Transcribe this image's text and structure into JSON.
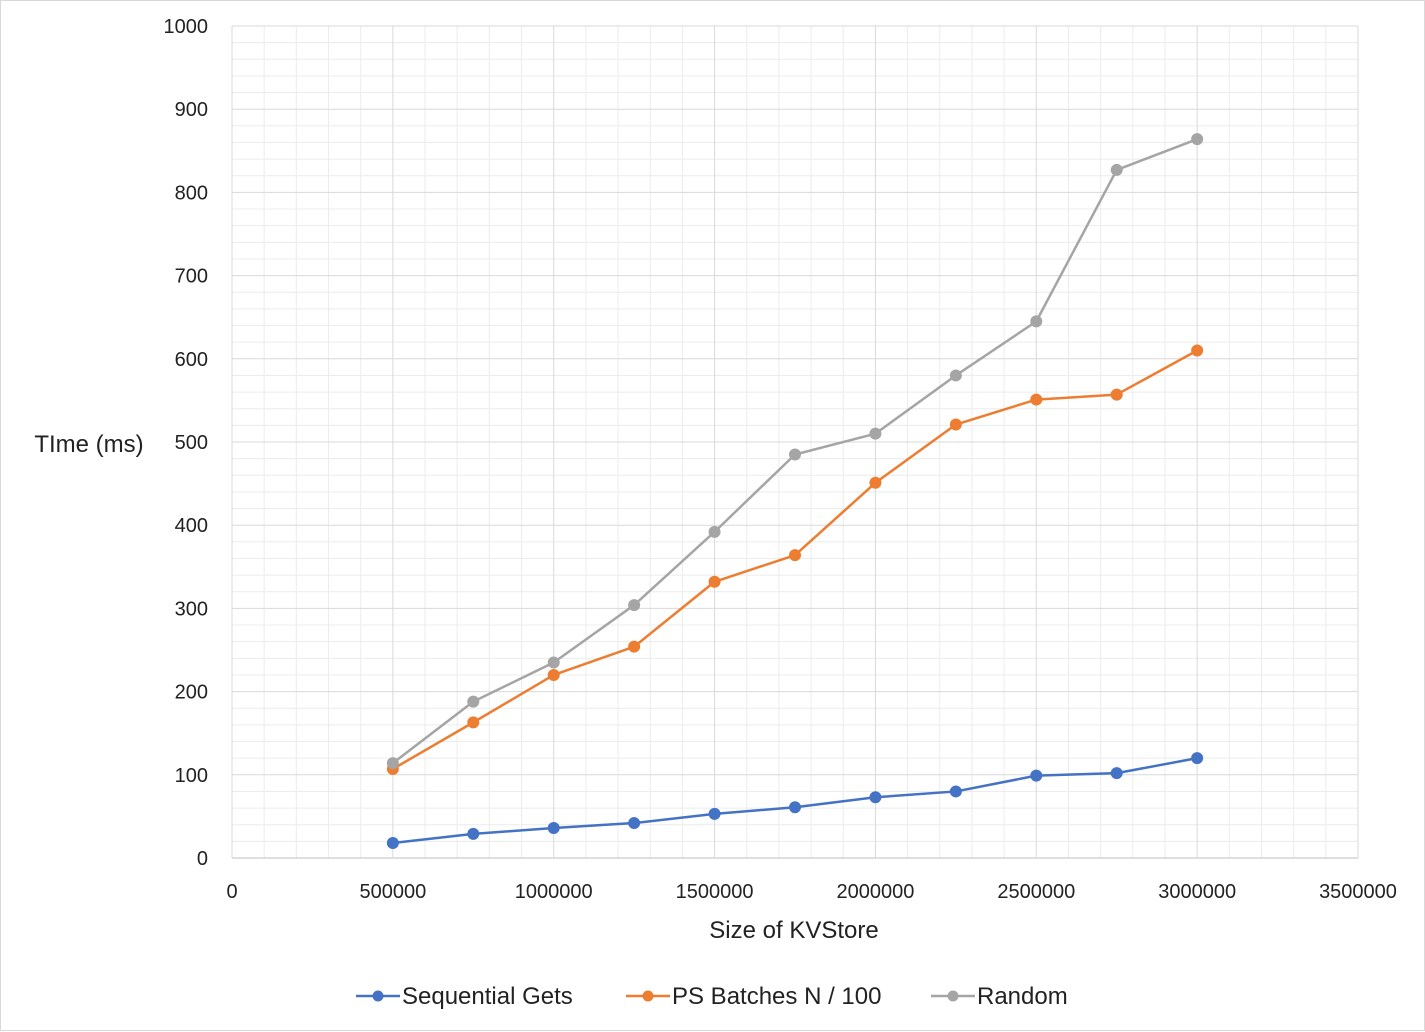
{
  "chart_data": {
    "type": "line",
    "title": "",
    "xlabel": "Size of KVStore",
    "ylabel": "TIme (ms)",
    "xlim": [
      0,
      3500000
    ],
    "ylim": [
      0,
      1000
    ],
    "x_ticks": [
      "0",
      "500000",
      "1000000",
      "1500000",
      "2000000",
      "2500000",
      "3000000",
      "3500000"
    ],
    "y_ticks": [
      "0",
      "100",
      "200",
      "300",
      "400",
      "500",
      "600",
      "700",
      "800",
      "900",
      "1000"
    ],
    "grid": true,
    "legend_position": "bottom",
    "x": [
      500000,
      750000,
      1000000,
      1250000,
      1500000,
      1750000,
      2000000,
      2250000,
      2500000,
      2750000,
      3000000
    ],
    "series": [
      {
        "name": "Sequential Gets",
        "color": "#4472c4",
        "values": [
          18,
          29,
          36,
          42,
          53,
          61,
          73,
          80,
          99,
          102,
          120
        ]
      },
      {
        "name": "PS Batches N / 100",
        "color": "#ed7d31",
        "values": [
          107,
          163,
          220,
          254,
          332,
          364,
          451,
          521,
          551,
          557,
          610
        ]
      },
      {
        "name": "Random",
        "color": "#a5a5a5",
        "values": [
          114,
          188,
          235,
          304,
          392,
          485,
          510,
          580,
          645,
          827,
          864
        ]
      }
    ]
  }
}
